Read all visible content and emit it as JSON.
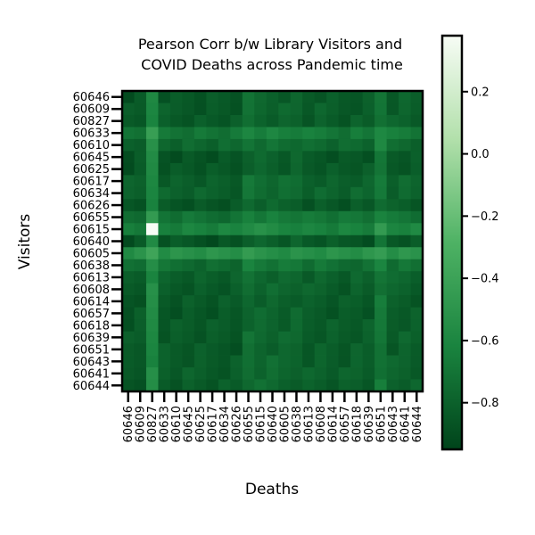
{
  "chart_data": {
    "type": "heatmap",
    "title": "Pearson Corr b/w Library Visitors and\nCOVID Deaths across Pandemic time",
    "xlabel": "Deaths",
    "ylabel": "Visitors",
    "categories": [
      "60646",
      "60609",
      "60827",
      "60633",
      "60610",
      "60645",
      "60625",
      "60617",
      "60634",
      "60626",
      "60655",
      "60615",
      "60640",
      "60605",
      "60638",
      "60613",
      "60608",
      "60614",
      "60657",
      "60618",
      "60639",
      "60651",
      "60643",
      "60641",
      "60644"
    ],
    "colormap": "Greens_r",
    "zlim": [
      -0.95,
      0.38
    ],
    "colorbar_ticks": [
      "0.2",
      "0.0",
      "−0.2",
      "−0.4",
      "−0.6",
      "−0.8"
    ],
    "colorbar_tick_values": [
      0.2,
      0.0,
      -0.2,
      -0.4,
      -0.6,
      -0.8
    ],
    "row_values": [
      -0.86,
      -0.84,
      -0.85,
      -0.55,
      -0.72,
      -0.89,
      -0.88,
      -0.78,
      -0.77,
      -0.88,
      -0.6,
      -0.45,
      -0.9,
      -0.35,
      -0.65,
      -0.8,
      -0.82,
      -0.85,
      -0.86,
      -0.84,
      -0.83,
      -0.85,
      -0.82,
      -0.81,
      -0.83
    ],
    "col_values": [
      -0.87,
      -0.85,
      -0.4,
      -0.82,
      -0.84,
      -0.83,
      -0.84,
      -0.85,
      -0.84,
      -0.85,
      -0.65,
      -0.7,
      -0.72,
      -0.75,
      -0.73,
      -0.8,
      -0.79,
      -0.81,
      -0.83,
      -0.8,
      -0.82,
      -0.55,
      -0.78,
      -0.77,
      -0.8
    ],
    "value_at_60615_60827": 0.38
  }
}
